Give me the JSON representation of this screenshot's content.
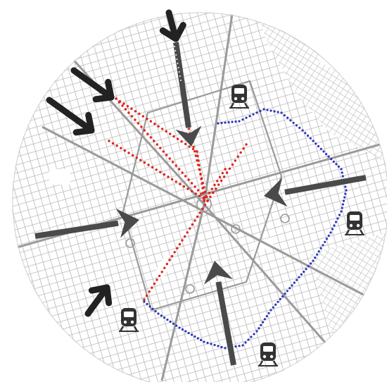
{
  "map": {
    "theme": {
      "background": "#ffffff",
      "street_grid": "#b8b8b8",
      "major_avenue": "#9a9a9a",
      "red_route": "#e0201a",
      "blue_route": "#2a35b8",
      "arrow_black": "#222222",
      "arrow_gray": "#4a4a4a"
    },
    "icons": [
      {
        "name": "train-station-icon-north"
      },
      {
        "name": "train-station-icon-east"
      },
      {
        "name": "train-station-icon-southwest"
      },
      {
        "name": "train-station-icon-south"
      }
    ],
    "legend": []
  }
}
